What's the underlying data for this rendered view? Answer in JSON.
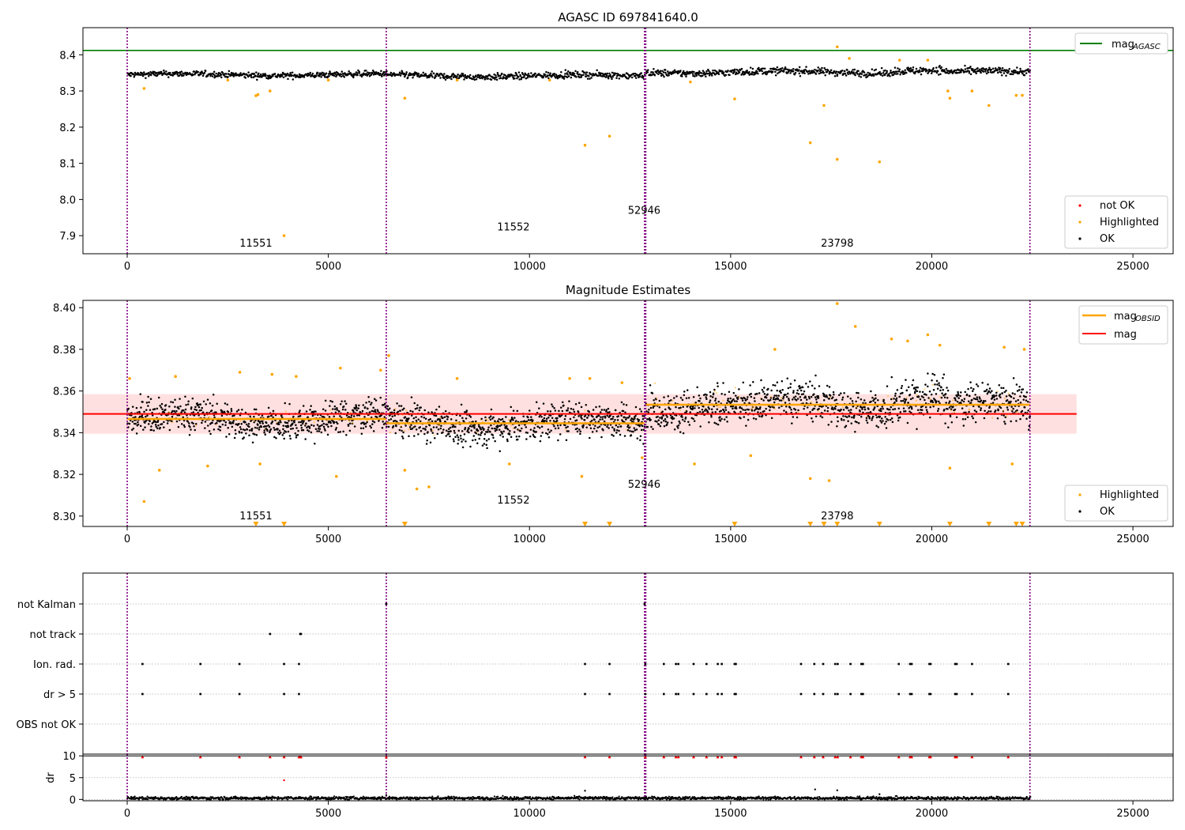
{
  "chart_data": [
    {
      "type": "scatter",
      "title": "AGASC ID 697841640.0",
      "xlabel": "",
      "ylabel": "",
      "xlim": [
        -1100,
        26000
      ],
      "ylim": [
        7.85,
        8.475
      ],
      "xticks": [
        0,
        5000,
        10000,
        15000,
        20000,
        25000
      ],
      "yticks": [
        7.9,
        8.0,
        8.1,
        8.2,
        8.3,
        8.4
      ],
      "ytick_labels": [
        "7.9",
        "8.0",
        "8.1",
        "8.2",
        "8.3",
        "8.4"
      ],
      "grid": false,
      "obsid_boundaries": [
        0,
        6440,
        12860,
        12890,
        22440
      ],
      "obsid_labels": [
        {
          "text": "11551",
          "x": 3200,
          "y": 7.87
        },
        {
          "text": "11552",
          "x": 9600,
          "y": 7.915
        },
        {
          "text": "52946",
          "x": 12850,
          "y": 7.96
        },
        {
          "text": "23798",
          "x": 17650,
          "y": 7.87
        }
      ],
      "reference_lines": [
        {
          "name": "mag_AGASC",
          "y": 8.412,
          "color": "#008000"
        }
      ],
      "ok_bands": [
        {
          "x": [
            0,
            6440
          ],
          "center": 8.345,
          "spread": 0.009
        },
        {
          "x": [
            6440,
            12860
          ],
          "center": 8.342,
          "spread": 0.01
        },
        {
          "x": [
            12890,
            19000
          ],
          "center": 8.352,
          "spread": 0.011
        },
        {
          "x": [
            19000,
            20300
          ],
          "center": 8.358,
          "spread": 0.012
        },
        {
          "x": [
            20300,
            22440
          ],
          "center": 8.352,
          "spread": 0.011
        }
      ],
      "highlighted_points": [
        [
          420,
          8.307
        ],
        [
          3200,
          8.287
        ],
        [
          3250,
          8.29
        ],
        [
          3550,
          8.3
        ],
        [
          3900,
          7.9
        ],
        [
          6900,
          8.28
        ],
        [
          11380,
          8.15
        ],
        [
          11990,
          8.175
        ],
        [
          15100,
          8.278
        ],
        [
          16980,
          8.157
        ],
        [
          17320,
          8.26
        ],
        [
          17650,
          8.111
        ],
        [
          17650,
          8.422
        ],
        [
          18700,
          8.104
        ],
        [
          20450,
          8.28
        ],
        [
          20400,
          8.3
        ],
        [
          21000,
          8.3
        ],
        [
          21420,
          8.26
        ],
        [
          22100,
          8.288
        ],
        [
          22250,
          8.288
        ],
        [
          19200,
          8.385
        ],
        [
          19900,
          8.385
        ],
        [
          17950,
          8.39
        ],
        [
          2500,
          8.33
        ],
        [
          5000,
          8.33
        ],
        [
          8200,
          8.33
        ],
        [
          10500,
          8.33
        ],
        [
          14000,
          8.325
        ]
      ],
      "legend": [
        {
          "label": "mag",
          "subscript": "AGASC",
          "marker": "line",
          "color": "#008000",
          "placement": "upper right"
        },
        {
          "label": "not OK",
          "marker": "dot",
          "color": "#ff0000",
          "placement": "lower right"
        },
        {
          "label": "Highlighted",
          "marker": "dot",
          "color": "#ffa500",
          "placement": "lower right"
        },
        {
          "label": "OK",
          "marker": "dot",
          "color": "#000000",
          "placement": "lower right"
        }
      ]
    },
    {
      "type": "scatter",
      "title": "Magnitude Estimates",
      "xlabel": "",
      "ylabel": "",
      "xlim": [
        -1100,
        26000
      ],
      "ylim": [
        8.295,
        8.4035
      ],
      "xticks": [
        0,
        5000,
        10000,
        15000,
        20000,
        25000
      ],
      "yticks": [
        8.3,
        8.32,
        8.34,
        8.36,
        8.38,
        8.4
      ],
      "ytick_labels": [
        "8.30",
        "8.32",
        "8.34",
        "8.36",
        "8.38",
        "8.40"
      ],
      "grid": false,
      "obsid_boundaries": [
        0,
        6440,
        12860,
        12890,
        22440
      ],
      "obsid_labels": [
        {
          "text": "11551",
          "x": 3200,
          "y": 8.2985
        },
        {
          "text": "11552",
          "x": 9600,
          "y": 8.306
        },
        {
          "text": "52946",
          "x": 12850,
          "y": 8.3135
        },
        {
          "text": "23798",
          "x": 17650,
          "y": 8.2985
        }
      ],
      "mag": {
        "value": 8.349,
        "band": [
          8.3395,
          8.3585
        ],
        "x": [
          -1100,
          23600
        ],
        "color": "#ff0000"
      },
      "mag_obsid": [
        {
          "x": [
            0,
            6440
          ],
          "value": 8.3466
        },
        {
          "x": [
            6440,
            12860
          ],
          "value": 8.3445
        },
        {
          "x": [
            12890,
            22440
          ],
          "value": 8.3534
        }
      ],
      "ok_bands": [
        {
          "x": [
            0,
            6440
          ],
          "center": 8.3466,
          "spread": 0.0085
        },
        {
          "x": [
            6440,
            12860
          ],
          "center": 8.3445,
          "spread": 0.009
        },
        {
          "x": [
            12890,
            19000
          ],
          "center": 8.3534,
          "spread": 0.01
        },
        {
          "x": [
            19000,
            20300
          ],
          "center": 8.3575,
          "spread": 0.011
        },
        {
          "x": [
            20300,
            22440
          ],
          "center": 8.352,
          "spread": 0.01
        }
      ],
      "highlighted_points": [
        [
          60,
          8.366
        ],
        [
          420,
          8.307
        ],
        [
          800,
          8.322
        ],
        [
          1200,
          8.367
        ],
        [
          2000,
          8.324
        ],
        [
          2800,
          8.369
        ],
        [
          3300,
          8.325
        ],
        [
          3600,
          8.368
        ],
        [
          4200,
          8.367
        ],
        [
          5200,
          8.319
        ],
        [
          5300,
          8.371
        ],
        [
          6300,
          8.37
        ],
        [
          6500,
          8.377
        ],
        [
          6900,
          8.322
        ],
        [
          7200,
          8.313
        ],
        [
          7500,
          8.314
        ],
        [
          8200,
          8.366
        ],
        [
          9500,
          8.325
        ],
        [
          11000,
          8.366
        ],
        [
          11300,
          8.319
        ],
        [
          11500,
          8.366
        ],
        [
          12300,
          8.364
        ],
        [
          12800,
          8.328
        ],
        [
          14100,
          8.325
        ],
        [
          15500,
          8.329
        ],
        [
          16100,
          8.38
        ],
        [
          16980,
          8.318
        ],
        [
          17450,
          8.317
        ],
        [
          17650,
          8.402
        ],
        [
          18100,
          8.391
        ],
        [
          19000,
          8.385
        ],
        [
          19400,
          8.384
        ],
        [
          19900,
          8.387
        ],
        [
          20200,
          8.382
        ],
        [
          20450,
          8.323
        ],
        [
          21800,
          8.381
        ],
        [
          22000,
          8.325
        ],
        [
          22300,
          8.38
        ]
      ],
      "below_range_markers": [
        3200,
        3900,
        6900,
        11380,
        11990,
        15100,
        16980,
        17320,
        17650,
        18700,
        20450,
        21420,
        22100,
        22250
      ],
      "legend": [
        {
          "label": "mag",
          "subscript": "OBSID",
          "marker": "line",
          "color": "#ffa500",
          "placement": "upper right"
        },
        {
          "label": "mag",
          "marker": "line",
          "color": "#ff0000",
          "placement": "upper right"
        },
        {
          "label": "Highlighted",
          "marker": "dot",
          "color": "#ffa500",
          "placement": "lower right"
        },
        {
          "label": "OK",
          "marker": "dot",
          "color": "#000000",
          "placement": "lower right"
        }
      ]
    },
    {
      "type": "scatter",
      "title": "",
      "xlabel": "",
      "ylabel": "",
      "xlim": [
        -1100,
        26000
      ],
      "categories": [
        "not Kalman",
        "not track",
        "Ion. rad.",
        "dr > 5",
        "OBS not OK"
      ],
      "grid": true,
      "obsid_boundaries": [
        0,
        6440,
        12860,
        12890,
        22440
      ],
      "flags": {
        "not Kalman": [
          6440,
          12860
        ],
        "not track": [
          3550,
          4300,
          4320
        ],
        "Ion. rad.": [
          380,
          1820,
          2790,
          3900,
          4270,
          11380,
          11990,
          12880,
          13340,
          13640,
          13700,
          14080,
          14400,
          14680,
          14780,
          15100,
          15130,
          16750,
          17080,
          17300,
          17600,
          17660,
          17980,
          18250,
          18290,
          19180,
          19460,
          19500,
          19940,
          19970,
          20580,
          20620,
          21000,
          21900
        ],
        "dr > 5": [
          380,
          1820,
          2790,
          3900,
          4270,
          11380,
          11990,
          12880,
          13340,
          13640,
          13700,
          14080,
          14400,
          14680,
          14780,
          15100,
          15130,
          16750,
          17080,
          17300,
          17600,
          17660,
          17980,
          18250,
          18290,
          19180,
          19460,
          19500,
          19940,
          19970,
          20580,
          20620,
          21000,
          21900
        ],
        "OBS not OK": []
      }
    },
    {
      "type": "scatter",
      "title": "",
      "xlabel": "",
      "ylabel": "dr",
      "xlim": [
        -1100,
        26000
      ],
      "ylim": [
        -0.3,
        10.4
      ],
      "xticks": [
        0,
        5000,
        10000,
        15000,
        20000,
        25000
      ],
      "yticks": [
        0,
        5,
        10
      ],
      "ytick_labels": [
        "0",
        "5",
        "10"
      ],
      "grid": true,
      "obsid_boundaries": [
        0,
        6440,
        12860,
        12890,
        22440
      ],
      "reference_lines": [
        {
          "y": 10,
          "color": "#000000"
        }
      ],
      "baseline": {
        "x": [
          0,
          22440
        ],
        "center": 0.3,
        "spread": 0.35
      },
      "outliers_black": [
        [
          11380,
          2.0
        ],
        [
          17100,
          2.3
        ],
        [
          17650,
          2.1
        ],
        [
          6440,
          1.0
        ],
        [
          18700,
          1.2
        ]
      ],
      "clipped_red": [
        380,
        1820,
        2790,
        3550,
        3900,
        4270,
        4300,
        4320,
        6440,
        11380,
        11990,
        12880,
        13340,
        13640,
        13700,
        14080,
        14400,
        14680,
        14780,
        15100,
        15130,
        16750,
        17080,
        17300,
        17600,
        17660,
        17980,
        18250,
        18290,
        19180,
        19460,
        19500,
        19940,
        19970,
        20580,
        20620,
        21000,
        21900
      ],
      "red_points": [
        [
          3900,
          4.4
        ]
      ]
    }
  ],
  "colors": {
    "ok": "#000000",
    "highlighted": "#ffa500",
    "not_ok": "#ff0000",
    "obsid_boundary": "#800080",
    "mag_agasc": "#008000",
    "mag_obsid": "#ffa500",
    "mag": "#ff0000",
    "grid": "#b0b0b0"
  }
}
